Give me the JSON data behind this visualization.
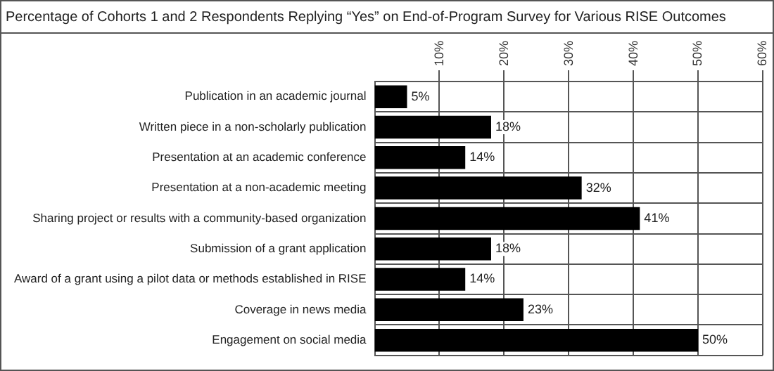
{
  "chart_data": {
    "type": "bar",
    "orientation": "horizontal",
    "title": "Percentage of Cohorts 1 and 2 Respondents Replying “Yes” on End-of-Program Survey for Various RISE Outcomes",
    "categories": [
      "Publication in an academic journal",
      "Written piece in a non-scholarly publication",
      "Presentation at an academic conference",
      "Presentation at a non-academic meeting",
      "Sharing project or results with a community-based organization",
      "Submission of a grant application",
      "Award of a grant using a pilot data or methods established in RISE",
      "Coverage in news media",
      "Engagement on social media"
    ],
    "values": [
      5,
      18,
      14,
      32,
      41,
      18,
      14,
      23,
      50
    ],
    "value_labels": [
      "5%",
      "18%",
      "14%",
      "32%",
      "41%",
      "18%",
      "14%",
      "23%",
      "50%"
    ],
    "color": "#000000",
    "xlim": [
      0,
      60
    ],
    "xticks": [
      {
        "value": 10,
        "label": "10%"
      },
      {
        "value": 20,
        "label": "20%"
      },
      {
        "value": 30,
        "label": "30%"
      },
      {
        "value": 40,
        "label": "40%"
      },
      {
        "value": 50,
        "label": "50%"
      },
      {
        "value": 60,
        "label": "60%"
      }
    ],
    "grid": true,
    "legend": false
  }
}
